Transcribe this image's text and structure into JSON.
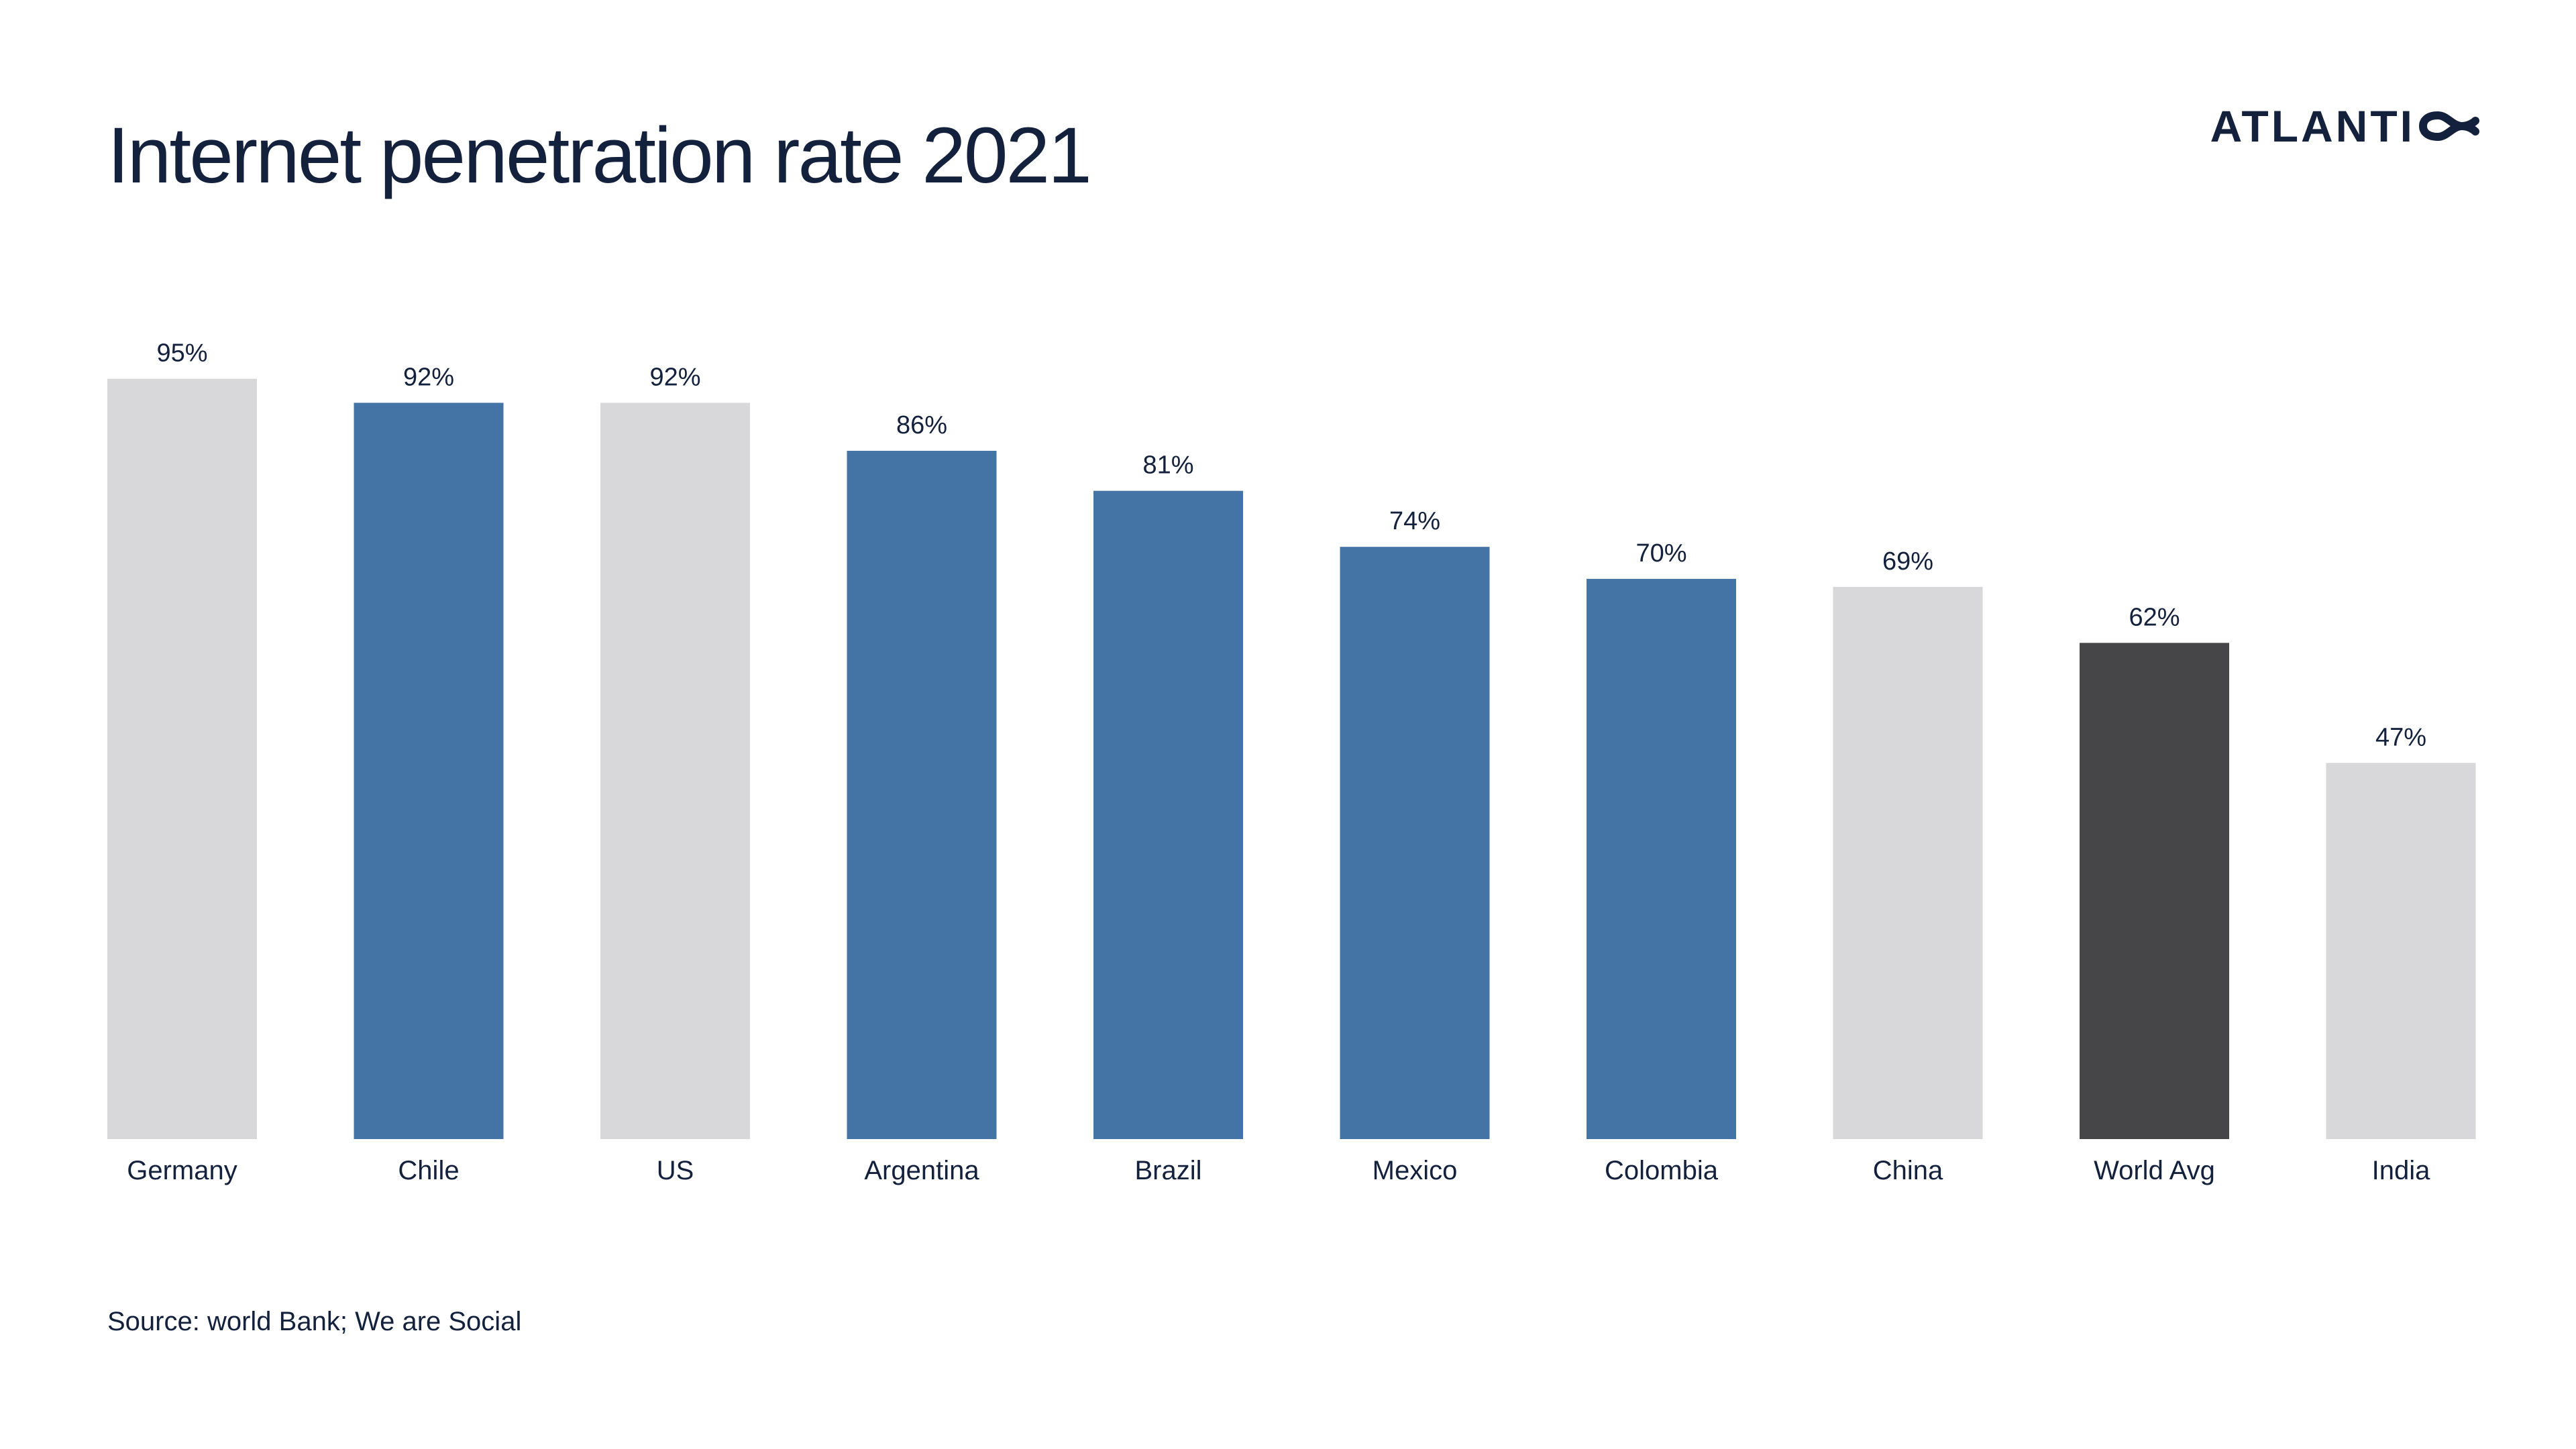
{
  "header": {
    "title": "Internet penetration rate 2021",
    "brand": "ATLANTICO"
  },
  "footer": {
    "source": "Source: world Bank; We are Social"
  },
  "colors": {
    "highlight": "#4474a5",
    "comparison": "#d8d7d9",
    "world_average": "#464547",
    "text": "#14213d"
  },
  "chart_data": {
    "type": "bar",
    "title": "Internet penetration rate 2021",
    "xlabel": "",
    "ylabel": "",
    "ylim": [
      0,
      100
    ],
    "grid": false,
    "legend": "none",
    "categories": [
      "Germany",
      "Chile",
      "US",
      "Argentina",
      "Brazil",
      "Mexico",
      "Colombia",
      "China",
      "World Avg",
      "India"
    ],
    "values": [
      95,
      92,
      92,
      86,
      81,
      74,
      70,
      69,
      62,
      47
    ],
    "labels": [
      "95%",
      "92%",
      "92%",
      "86%",
      "81%",
      "74%",
      "70%",
      "69%",
      "62%",
      "47%"
    ],
    "bar_colors": [
      "#d8d7d9",
      "#4474a5",
      "#d8d7d9",
      "#4474a5",
      "#4474a5",
      "#4474a5",
      "#4474a5",
      "#d8d7d9",
      "#464547",
      "#d8d7d9"
    ]
  }
}
